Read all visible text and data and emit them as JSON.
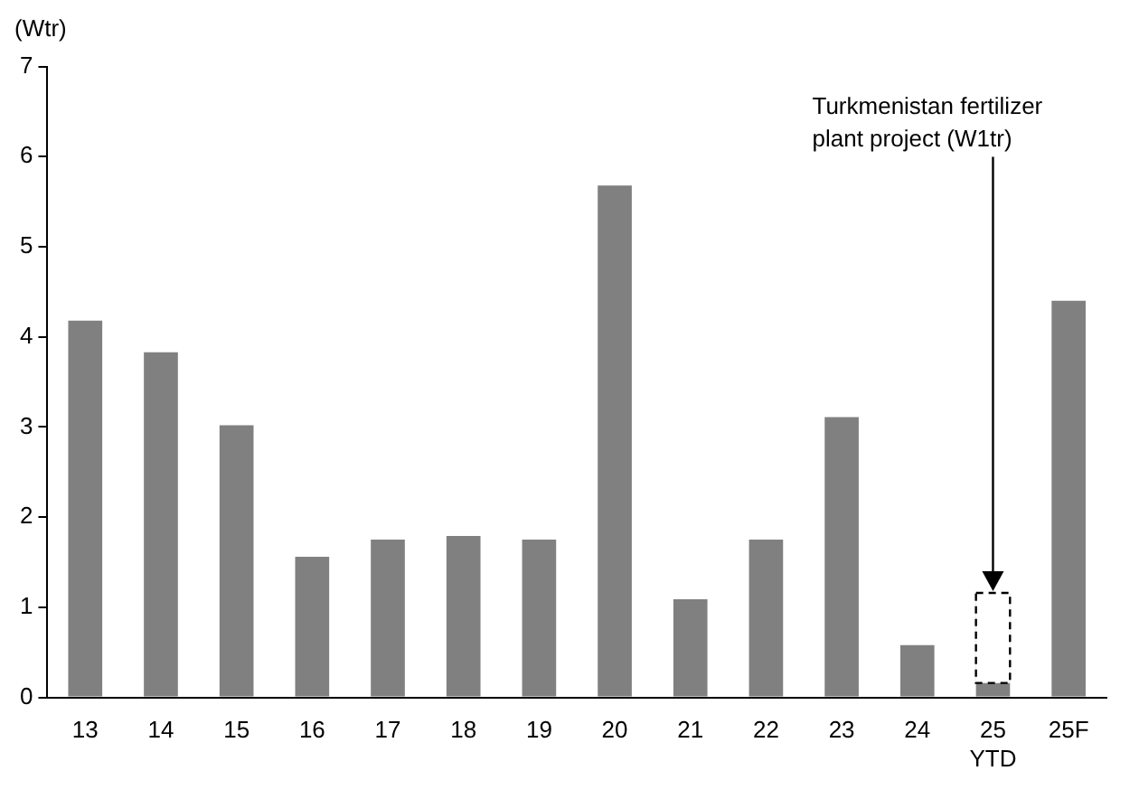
{
  "chart_data": {
    "type": "bar",
    "ylabel": "(Wtr)",
    "stacked": true,
    "categories": [
      "13",
      "14",
      "15",
      "16",
      "17",
      "18",
      "19",
      "20",
      "21",
      "22",
      "23",
      "24",
      "25\nYTD",
      "25F"
    ],
    "series": [
      {
        "color": "#808080",
        "values": [
          4.18,
          3.83,
          3.02,
          1.56,
          1.75,
          1.79,
          1.75,
          5.68,
          1.09,
          1.75,
          3.11,
          0.58,
          0.16,
          4.4
        ]
      },
      {
        "color": "#ffffff",
        "line_style": "dashed",
        "values": [
          null,
          null,
          null,
          null,
          null,
          null,
          null,
          null,
          null,
          null,
          null,
          null,
          1,
          null
        ]
      }
    ],
    "ylim": [
      0,
      7
    ],
    "yticks": [
      0,
      1,
      2,
      3,
      4,
      5,
      6,
      7
    ],
    "grid": false,
    "legend": false,
    "annotations": [
      "Turkmenistan fertilizer plant project (W1tr)"
    ]
  }
}
